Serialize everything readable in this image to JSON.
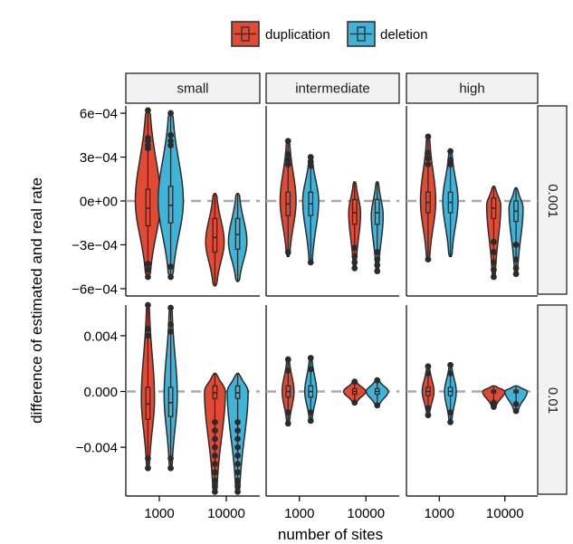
{
  "chart_data": {
    "type": "violin",
    "title": "",
    "xlabel": "number of sites",
    "ylabel": "difference of estimated and real rate",
    "legend": {
      "position": "top",
      "entries": [
        {
          "name": "duplication",
          "color": "#e34a33"
        },
        {
          "name": "deletion",
          "color": "#3eb4d8"
        }
      ]
    },
    "facet_columns": [
      "small",
      "intermediate",
      "high"
    ],
    "facet_rows": [
      {
        "label": "0.001",
        "ylim": [
          -0.00065,
          0.00065
        ],
        "yticks": [
          0.0006,
          0.0003,
          0,
          -0.0003,
          -0.0006
        ],
        "ytick_labels": [
          "6e−04",
          "3e−04",
          "0e+00",
          "−3e−04",
          "−6e−04"
        ]
      },
      {
        "label": "0.01",
        "ylim": [
          -0.0075,
          0.0062
        ],
        "yticks": [
          0.004,
          0,
          -0.004
        ],
        "ytick_labels": [
          "0.004",
          "0.000",
          "−0.004"
        ]
      }
    ],
    "x_categories": [
      "1000",
      "10000"
    ],
    "reference_line": 0,
    "grid": false,
    "panels": [
      {
        "row": 0,
        "col": 0,
        "violins": [
          {
            "x": "1000",
            "series": "duplication",
            "min": -0.00052,
            "max": 0.00062,
            "q1": -0.00017,
            "median": -5e-05,
            "q3": 8e-05,
            "peak": 0.0,
            "width": 1.0,
            "outliers": [
              0.00062,
              0.00043,
              0.00041,
              0.00038,
              0.00036,
              -0.00043,
              -0.00047,
              -0.00052
            ]
          },
          {
            "x": "1000",
            "series": "deletion",
            "min": -0.00052,
            "max": 0.0006,
            "q1": -0.00015,
            "median": -3e-05,
            "q3": 0.0001,
            "peak": 0.0,
            "width": 1.0,
            "outliers": [
              0.0006,
              0.00045,
              0.00041,
              0.00038,
              -0.00045,
              -0.00052
            ]
          },
          {
            "x": "10000",
            "series": "duplication",
            "min": -0.00058,
            "max": 5e-05,
            "q1": -0.00035,
            "median": -0.00025,
            "q3": -0.00012,
            "peak": -0.00028,
            "width": 0.72
          },
          {
            "x": "10000",
            "series": "deletion",
            "min": -0.00055,
            "max": 5e-05,
            "q1": -0.00033,
            "median": -0.00023,
            "q3": -0.00012,
            "peak": -0.00028,
            "width": 0.72
          }
        ]
      },
      {
        "row": 0,
        "col": 1,
        "violins": [
          {
            "x": "1000",
            "series": "duplication",
            "min": -0.00038,
            "max": 0.00041,
            "q1": -0.0001,
            "median": -2e-05,
            "q3": 6e-05,
            "peak": 0.0,
            "width": 0.62,
            "outliers": [
              0.00041,
              0.00032,
              0.00028,
              0.00025,
              -0.00035
            ]
          },
          {
            "x": "1000",
            "series": "deletion",
            "min": -0.00042,
            "max": 0.0003,
            "q1": -0.0001,
            "median": -2e-05,
            "q3": 6e-05,
            "peak": 0.0,
            "width": 0.62,
            "outliers": [
              0.0003,
              0.00027,
              0.00024,
              -0.00042
            ]
          },
          {
            "x": "10000",
            "series": "duplication",
            "min": -0.00046,
            "max": 0.00013,
            "q1": -0.00016,
            "median": -8e-05,
            "q3": 1e-05,
            "peak": -8e-05,
            "width": 0.45,
            "outliers": [
              -0.00032,
              -0.00038,
              -0.00042,
              -0.00046
            ]
          },
          {
            "x": "10000",
            "series": "deletion",
            "min": -0.00048,
            "max": 0.00013,
            "q1": -0.00016,
            "median": -8e-05,
            "q3": 1e-05,
            "peak": -0.0001,
            "width": 0.45,
            "outliers": [
              -0.00035,
              -0.0004,
              -0.00044,
              -0.00048
            ]
          }
        ]
      },
      {
        "row": 0,
        "col": 2,
        "violins": [
          {
            "x": "1000",
            "series": "duplication",
            "min": -0.0004,
            "max": 0.00044,
            "q1": -8e-05,
            "median": -1e-05,
            "q3": 6e-05,
            "peak": 0.0,
            "width": 0.6,
            "outliers": [
              0.00044,
              0.00033,
              0.00029,
              0.00025,
              -0.0004
            ]
          },
          {
            "x": "1000",
            "series": "deletion",
            "min": -0.00038,
            "max": 0.00034,
            "q1": -8e-05,
            "median": -1e-05,
            "q3": 6e-05,
            "peak": 0.0,
            "width": 0.6,
            "outliers": [
              0.00034,
              0.00028,
              0.00025
            ]
          },
          {
            "x": "10000",
            "series": "duplication",
            "min": -0.00052,
            "max": 0.0001,
            "q1": -0.00012,
            "median": -5e-05,
            "q3": 2e-05,
            "peak": -3e-05,
            "width": 0.55,
            "outliers": [
              -0.00028,
              -0.00035,
              -0.00042,
              -0.00047,
              -0.00052
            ]
          },
          {
            "x": "10000",
            "series": "deletion",
            "min": -0.0005,
            "max": 9e-05,
            "q1": -0.00014,
            "median": -7e-05,
            "q3": 0.0,
            "peak": -5e-05,
            "width": 0.55,
            "outliers": [
              -0.0003,
              -0.0004,
              -0.00046,
              -0.0005
            ]
          }
        ]
      },
      {
        "row": 1,
        "col": 0,
        "violins": [
          {
            "x": "1000",
            "series": "duplication",
            "min": -0.0055,
            "max": 0.0062,
            "q1": -0.002,
            "median": -0.0009,
            "q3": 0.0003,
            "peak": -0.0005,
            "width": 0.5,
            "outliers": [
              0.0062,
              0.0045,
              0.004,
              -0.0048,
              -0.0055
            ]
          },
          {
            "x": "1000",
            "series": "deletion",
            "min": -0.0055,
            "max": 0.006,
            "q1": -0.0018,
            "median": -0.0008,
            "q3": 0.0003,
            "peak": -0.0003,
            "width": 0.5,
            "outliers": [
              0.006,
              0.0048,
              0.0043,
              -0.0048,
              -0.0055
            ]
          },
          {
            "x": "10000",
            "series": "duplication",
            "min": -0.0072,
            "max": 0.0013,
            "q1": -0.0005,
            "median": -0.0001,
            "q3": 0.0004,
            "peak": 0.0,
            "width": 0.82,
            "outliers": [
              -0.0022,
              -0.0028,
              -0.0034,
              -0.004,
              -0.0046,
              -0.0052,
              -0.0058,
              -0.0064,
              -0.0068,
              -0.0072
            ]
          },
          {
            "x": "10000",
            "series": "deletion",
            "min": -0.0072,
            "max": 0.0013,
            "q1": -0.0005,
            "median": -0.0001,
            "q3": 0.0004,
            "peak": 0.0,
            "width": 0.82,
            "outliers": [
              -0.0022,
              -0.0028,
              -0.0034,
              -0.004,
              -0.0046,
              -0.0052,
              -0.0058,
              -0.0064,
              -0.0068,
              -0.0072
            ]
          }
        ]
      },
      {
        "row": 1,
        "col": 1,
        "violins": [
          {
            "x": "1000",
            "series": "duplication",
            "min": -0.0023,
            "max": 0.0023,
            "q1": -0.0004,
            "median": 0.0,
            "q3": 0.0004,
            "peak": 0.0,
            "width": 0.45,
            "outliers": [
              0.0023,
              0.0015,
              -0.0015,
              -0.0023
            ]
          },
          {
            "x": "1000",
            "series": "deletion",
            "min": -0.0021,
            "max": 0.0024,
            "q1": -0.0004,
            "median": 0.0,
            "q3": 0.0004,
            "peak": 0.0,
            "width": 0.45,
            "outliers": [
              0.0024,
              0.0016,
              -0.0015,
              -0.0021
            ]
          },
          {
            "x": "10000",
            "series": "duplication",
            "min": -0.0008,
            "max": 0.0007,
            "q1": -0.0002,
            "median": 0.0,
            "q3": 0.0002,
            "peak": 0.0,
            "width": 0.88,
            "outliers": [
              0.0007,
              -0.0008
            ]
          },
          {
            "x": "10000",
            "series": "deletion",
            "min": -0.001,
            "max": 0.0008,
            "q1": -0.0002,
            "median": 0.0,
            "q3": 0.0002,
            "peak": 0.0,
            "width": 0.88,
            "outliers": [
              0.0008,
              -0.001
            ]
          }
        ]
      },
      {
        "row": 1,
        "col": 2,
        "violins": [
          {
            "x": "1000",
            "series": "duplication",
            "min": -0.0017,
            "max": 0.0018,
            "q1": -0.0003,
            "median": 0.0,
            "q3": 0.0003,
            "peak": 0.0,
            "width": 0.45,
            "outliers": [
              0.0018,
              0.0013,
              -0.0012,
              -0.0017
            ]
          },
          {
            "x": "1000",
            "series": "deletion",
            "min": -0.0022,
            "max": 0.0019,
            "q1": -0.0003,
            "median": 0.0,
            "q3": 0.0003,
            "peak": 0.0,
            "width": 0.45,
            "outliers": [
              0.0019,
              0.0013,
              -0.0015,
              -0.0022
            ]
          },
          {
            "x": "10000",
            "series": "duplication",
            "min": -0.0011,
            "max": 0.0004,
            "q1": -0.0001,
            "median": 0.0,
            "q3": 0.0001,
            "peak": 0.0,
            "width": 0.9,
            "outliers": [
              -0.0008,
              -0.0011
            ]
          },
          {
            "x": "10000",
            "series": "deletion",
            "min": -0.0014,
            "max": 0.0004,
            "q1": -0.0001,
            "median": 0.0,
            "q3": 0.0001,
            "peak": 0.0,
            "width": 0.9,
            "outliers": [
              -0.0009,
              -0.0014
            ]
          }
        ]
      }
    ]
  }
}
